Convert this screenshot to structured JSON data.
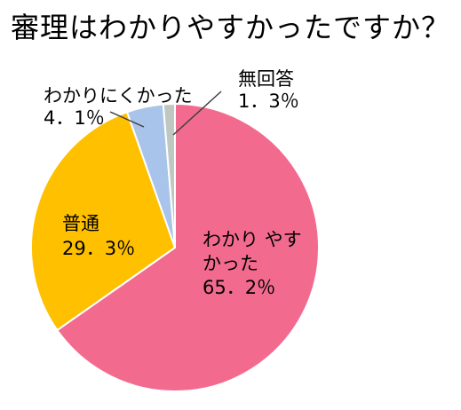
{
  "chart_data": {
    "type": "pie",
    "title": "審理はわかりやすかったですか？",
    "slices": [
      {
        "name": "わかりやすかった",
        "label_lines": [
          "わかり やす",
          "かった"
        ],
        "value": 65.2,
        "value_text": "65．2％",
        "color": "#F26B8F"
      },
      {
        "name": "普通",
        "label_lines": [
          "普通"
        ],
        "value": 29.3,
        "value_text": "29．3％",
        "color": "#FFC000"
      },
      {
        "name": "わかりにくかった",
        "label_lines": [
          "わかりにくかった"
        ],
        "value": 4.1,
        "value_text": "4．1％",
        "color": "#A9C4EA"
      },
      {
        "name": "無回答",
        "label_lines": [
          "無回答"
        ],
        "value": 1.3,
        "value_text": "1．3％",
        "color": "#BFC8C0"
      }
    ],
    "start_angle_deg": 0,
    "direction": "clockwise",
    "legend": "none"
  }
}
